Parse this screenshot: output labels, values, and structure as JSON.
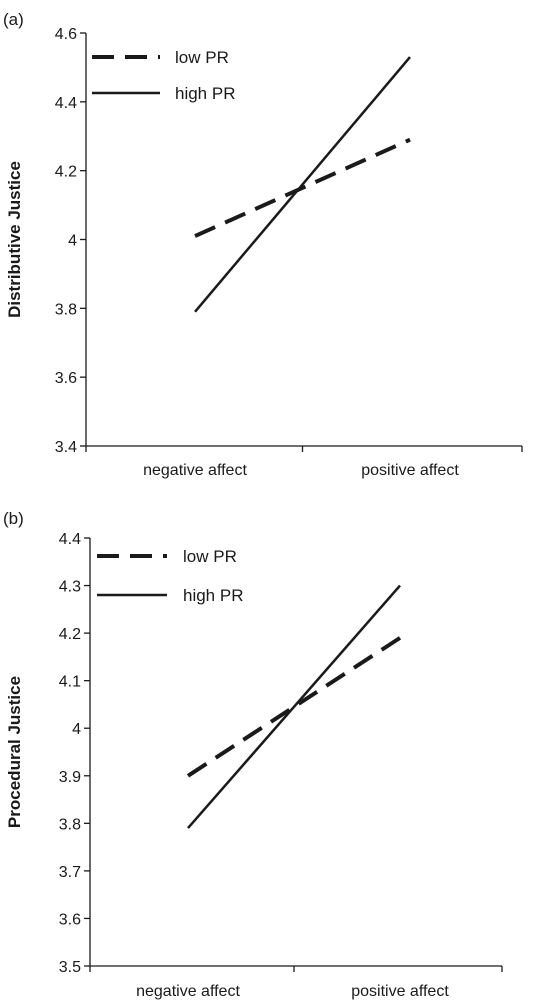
{
  "chart_data": [
    {
      "type": "line",
      "panel_label": "(a)",
      "title": "",
      "xlabel": "",
      "ylabel": "Distributive Justice",
      "ylim": [
        3.4,
        4.6
      ],
      "yticks": [
        "3.4",
        "3.6",
        "3.8",
        "4",
        "4.2",
        "4.4",
        "4.6"
      ],
      "categories": [
        "negative affect",
        "positive affect"
      ],
      "legend_position": "top-left",
      "series": [
        {
          "name": "low PR",
          "style": "dashed",
          "values": [
            4.01,
            4.29
          ]
        },
        {
          "name": "high PR",
          "style": "solid",
          "values": [
            3.79,
            4.53
          ]
        }
      ]
    },
    {
      "type": "line",
      "panel_label": "(b)",
      "title": "",
      "xlabel": "",
      "ylabel": "Procedural Justice",
      "ylim": [
        3.5,
        4.4
      ],
      "yticks": [
        "3.5",
        "3.6",
        "3.7",
        "3.8",
        "3.9",
        "4",
        "4.1",
        "4.2",
        "4.3",
        "4.4"
      ],
      "categories": [
        "negative affect",
        "positive affect"
      ],
      "legend_position": "top-left",
      "series": [
        {
          "name": "low PR",
          "style": "dashed",
          "values": [
            3.9,
            4.19
          ]
        },
        {
          "name": "high PR",
          "style": "solid",
          "values": [
            3.79,
            4.3
          ]
        }
      ]
    }
  ]
}
